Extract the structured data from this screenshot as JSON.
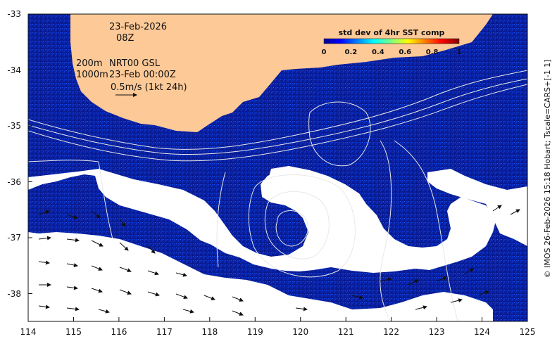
{
  "map": {
    "extent": {
      "lon": [
        114,
        125
      ],
      "lat": [
        -38.5,
        -33
      ]
    },
    "x_ticks": [
      "114",
      "115",
      "116",
      "117",
      "118",
      "119",
      "120",
      "121",
      "122",
      "123",
      "124",
      "125"
    ],
    "y_ticks": [
      "-33",
      "-34",
      "-35",
      "-36",
      "-37",
      "-38"
    ],
    "colors": {
      "ocean": "#0a1e9c",
      "land": "#fdc997",
      "cloud": "#ffffff",
      "contour": "#e8e8e8"
    }
  },
  "annotations": {
    "date": "23-Feb-2026",
    "time": "08Z",
    "isobath_200": "200m",
    "isobath_1000": "1000m",
    "model": "NRT00 GSL",
    "model_time": "23-Feb 00:00Z",
    "vector_scale": "0.5m/s (1kt 24h)"
  },
  "colorbar": {
    "title": "std dev of 4hr SST comp",
    "range": [
      0,
      1
    ],
    "tick_labels": [
      "0",
      "0.2",
      "0.4",
      "0.6",
      "0.8",
      "1"
    ],
    "colors": [
      "#00008f",
      "#0000ff",
      "#0080ff",
      "#00ffff",
      "#80ff80",
      "#ffff00",
      "#ff8000",
      "#ff0000",
      "#800000"
    ]
  },
  "credit": "© IMOS 26-Feb-2026 15:18 Hobart; Tscale=CARS+[-1 1]"
}
